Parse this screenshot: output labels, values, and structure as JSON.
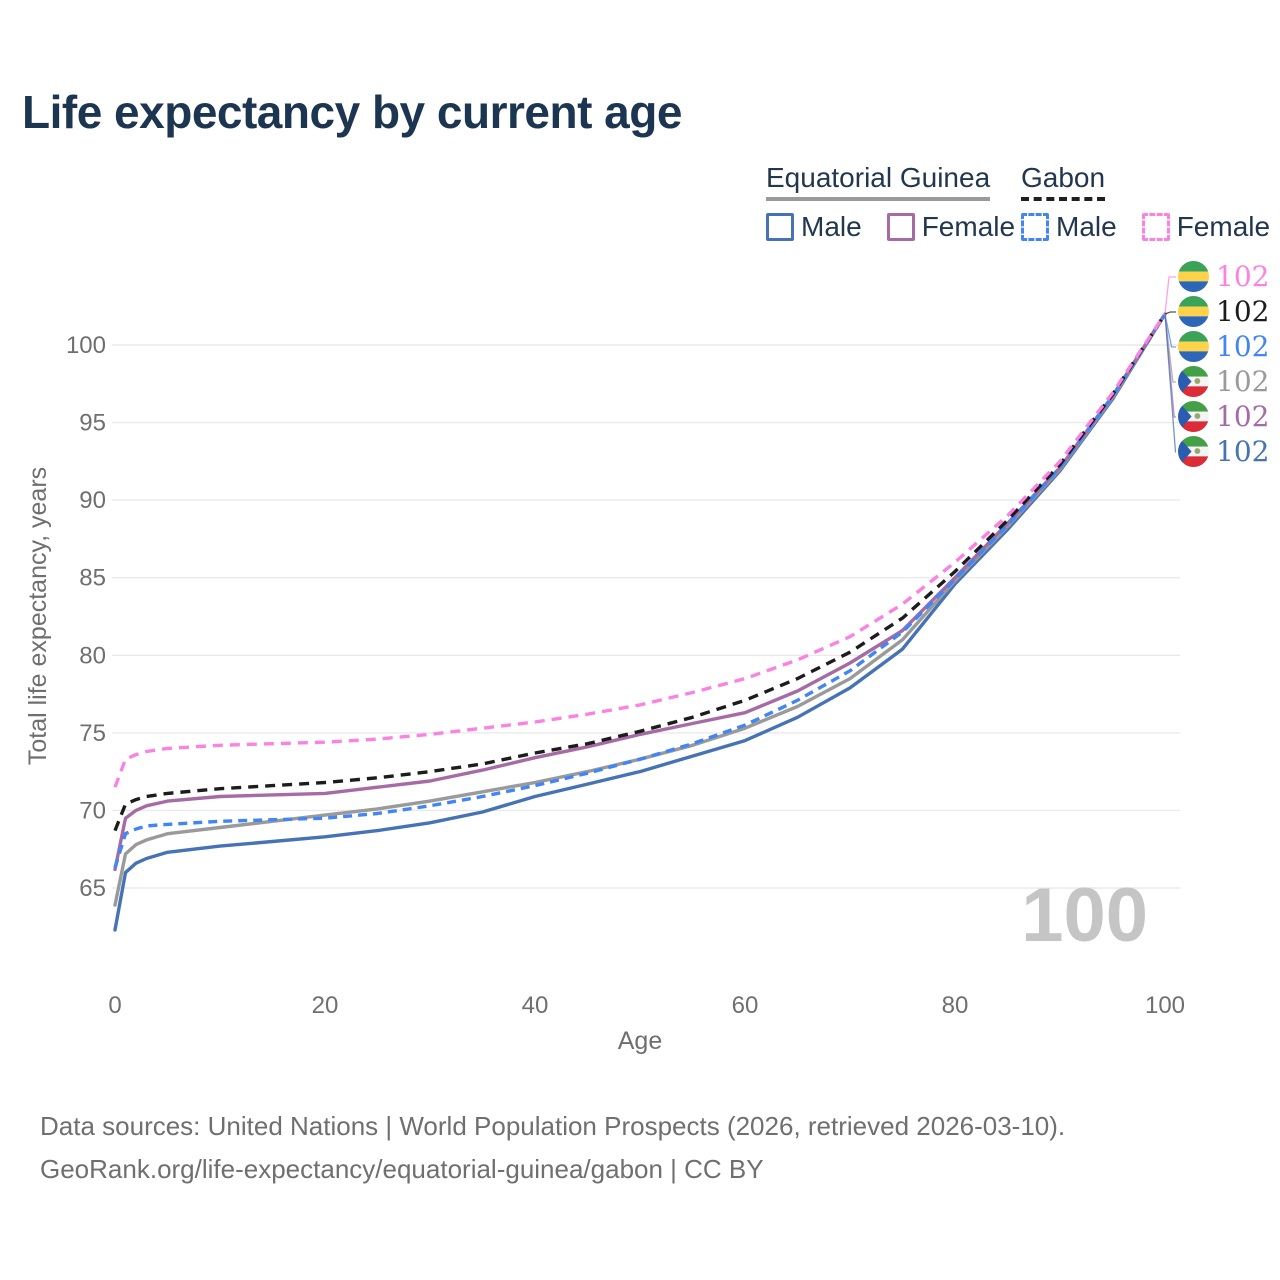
{
  "page": {
    "title": "Life expectancy by current age"
  },
  "legend": {
    "groups": [
      {
        "label": "Equatorial Guinea",
        "line_style": "solid",
        "line_color": "#9a9a9a"
      },
      {
        "label": "Gabon",
        "line_style": "dashed",
        "line_color": "#1f1f1f"
      }
    ],
    "entries": [
      {
        "label": "Male",
        "color": "#4673b5",
        "dashed": false
      },
      {
        "label": "Female",
        "color": "#a66ba5",
        "dashed": false
      },
      {
        "label": "Male",
        "color": "#4285f4",
        "dashed": true
      },
      {
        "label": "Female",
        "color": "#fb82e2",
        "dashed": true
      }
    ]
  },
  "chart_data": {
    "type": "line",
    "title": "Life expectancy by current age",
    "xlabel": "Age",
    "ylabel": "Total life expectancy, years",
    "x_ticks": [
      0,
      20,
      40,
      60,
      80,
      100
    ],
    "y_ticks": [
      65,
      70,
      75,
      80,
      85,
      90,
      95,
      100
    ],
    "xlim": [
      0,
      100
    ],
    "ylim": [
      62,
      103
    ],
    "grid": "horizontal",
    "legend_position": "top-right",
    "watermark": "100",
    "x": [
      0,
      1,
      2,
      3,
      5,
      10,
      15,
      20,
      25,
      30,
      35,
      40,
      45,
      50,
      55,
      60,
      65,
      70,
      75,
      80,
      85,
      90,
      95,
      100
    ],
    "series": [
      {
        "id": "equatorial-guinea-male",
        "name": "Equatorial Guinea Male",
        "color": "#4673b5",
        "dash": null,
        "values": [
          62.3,
          66.0,
          66.6,
          66.9,
          67.3,
          67.7,
          68.0,
          68.3,
          68.7,
          69.2,
          69.9,
          70.9,
          71.7,
          72.5,
          73.5,
          74.5,
          76.0,
          77.9,
          80.4,
          84.6,
          88.1,
          91.9,
          96.5,
          102
        ]
      },
      {
        "id": "equatorial-guinea-total",
        "name": "Equatorial Guinea",
        "color": "#9a9a9a",
        "dash": null,
        "values": [
          63.9,
          67.2,
          67.8,
          68.1,
          68.5,
          68.9,
          69.3,
          69.7,
          70.1,
          70.6,
          71.2,
          71.8,
          72.5,
          73.3,
          74.2,
          75.3,
          76.7,
          78.5,
          81.0,
          84.8,
          88.3,
          92.0,
          96.6,
          102
        ]
      },
      {
        "id": "equatorial-guinea-female",
        "name": "Equatorial Guinea Female",
        "color": "#a66ba5",
        "dash": null,
        "values": [
          66.2,
          69.5,
          70.0,
          70.3,
          70.6,
          70.9,
          71.0,
          71.1,
          71.5,
          71.9,
          72.6,
          73.4,
          74.1,
          74.9,
          75.6,
          76.3,
          77.7,
          79.5,
          81.6,
          85.0,
          88.5,
          92.1,
          96.7,
          102
        ]
      },
      {
        "id": "gabon-male",
        "name": "Gabon Male",
        "color": "#4285f4",
        "dash": "9 6",
        "values": [
          66.3,
          68.5,
          68.8,
          69.0,
          69.1,
          69.3,
          69.4,
          69.5,
          69.8,
          70.3,
          70.9,
          71.6,
          72.4,
          73.3,
          74.3,
          75.5,
          77.1,
          79.0,
          81.5,
          84.9,
          88.4,
          92.1,
          96.7,
          102
        ]
      },
      {
        "id": "gabon-total",
        "name": "Gabon",
        "color": "#1c1c1c",
        "dash": "10 7",
        "values": [
          68.7,
          70.4,
          70.7,
          70.9,
          71.1,
          71.4,
          71.6,
          71.8,
          72.1,
          72.5,
          73.0,
          73.7,
          74.3,
          75.1,
          76.0,
          77.1,
          78.5,
          80.2,
          82.4,
          85.4,
          88.7,
          92.3,
          96.8,
          102
        ]
      },
      {
        "id": "gabon-female",
        "name": "Gabon Female",
        "color": "#fb82e2",
        "dash": "10 7",
        "values": [
          71.5,
          73.3,
          73.6,
          73.8,
          74.0,
          74.2,
          74.3,
          74.4,
          74.6,
          74.9,
          75.3,
          75.7,
          76.2,
          76.8,
          77.6,
          78.5,
          79.7,
          81.2,
          83.3,
          86.0,
          89.0,
          92.5,
          96.9,
          102
        ]
      }
    ],
    "end_labels": [
      {
        "series": "Gabon Female",
        "flag": "gabon",
        "color": "#fb82e2",
        "value": "102"
      },
      {
        "series": "Gabon",
        "flag": "gabon",
        "color": "#1c1c1c",
        "value": "102"
      },
      {
        "series": "Gabon Male",
        "flag": "gabon",
        "color": "#4285f4",
        "value": "102"
      },
      {
        "series": "Equatorial Guinea",
        "flag": "equatorial-guinea",
        "color": "#9a9a9a",
        "value": "102"
      },
      {
        "series": "Equatorial Guinea Female",
        "flag": "equatorial-guinea",
        "color": "#a66ba5",
        "value": "102"
      },
      {
        "series": "Equatorial Guinea Male",
        "flag": "equatorial-guinea",
        "color": "#4673b5",
        "value": "102"
      }
    ]
  },
  "footer": {
    "line1": "Data sources: United Nations | World Population Prospects (2026, retrieved 2026-03-10).",
    "line2": "GeoRank.org/life-expectancy/equatorial-guinea/gabon | CC BY"
  }
}
